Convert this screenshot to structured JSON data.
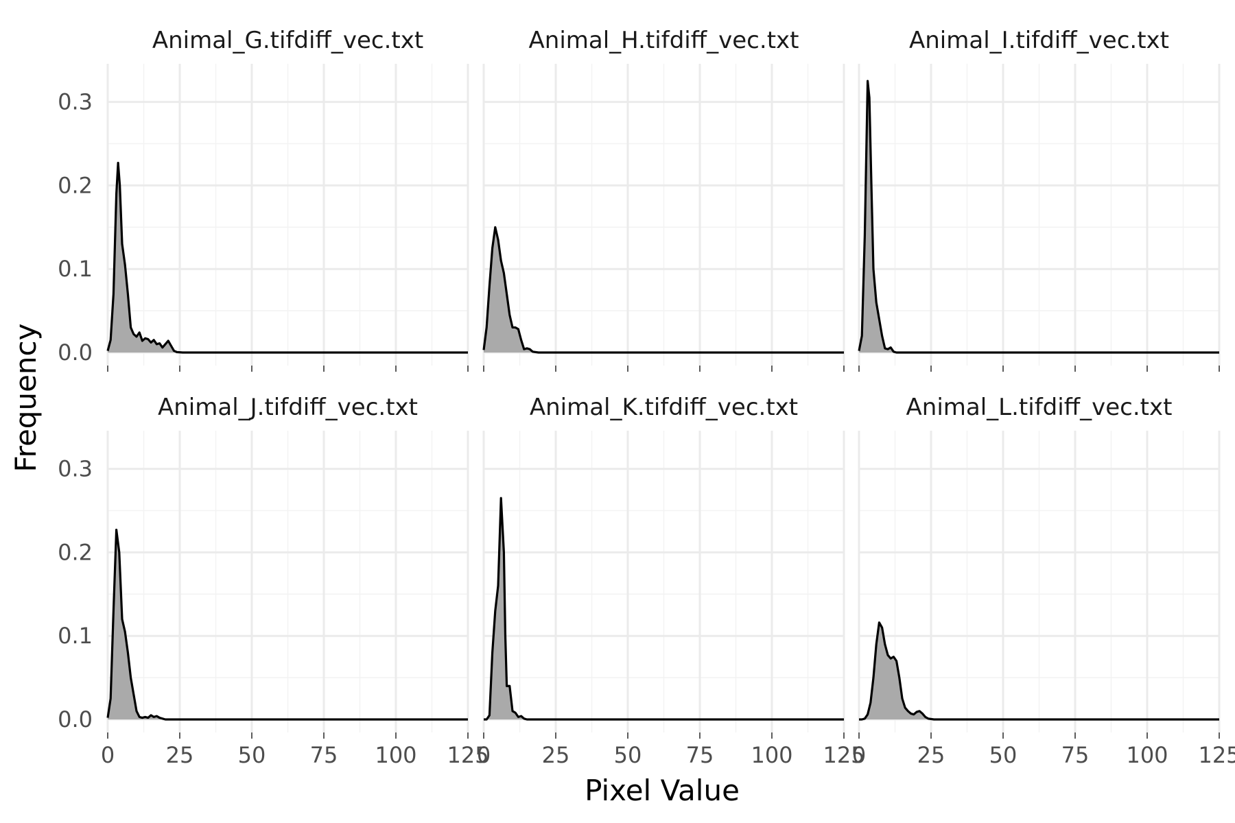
{
  "chart_data": {
    "type": "area",
    "subtype": "faceted density plot",
    "xlabel": "Pixel Value",
    "ylabel": "Frequency",
    "xlim": [
      0,
      125
    ],
    "ylim": [
      0,
      0.33
    ],
    "x_ticks": [
      0,
      25,
      50,
      75,
      100,
      125
    ],
    "x_tick_labels": [
      "0",
      "25",
      "50",
      "75",
      "100",
      "125"
    ],
    "y_ticks": [
      0.0,
      0.1,
      0.2,
      0.3
    ],
    "y_tick_labels": [
      "0.0",
      "0.1",
      "0.2",
      "0.3"
    ],
    "grid": true,
    "fill_color": "#aaaaaa",
    "line_color": "#000000",
    "facets": [
      {
        "title": "Animal_G.tifdiff_vec.txt",
        "points": [
          [
            0,
            0.002
          ],
          [
            1,
            0.015
          ],
          [
            2,
            0.07
          ],
          [
            3,
            0.19
          ],
          [
            3.6,
            0.227
          ],
          [
            4.2,
            0.2
          ],
          [
            5,
            0.13
          ],
          [
            6,
            0.105
          ],
          [
            7,
            0.07
          ],
          [
            8,
            0.03
          ],
          [
            9,
            0.022
          ],
          [
            10,
            0.019
          ],
          [
            11,
            0.024
          ],
          [
            12,
            0.014
          ],
          [
            13,
            0.017
          ],
          [
            14,
            0.016
          ],
          [
            15,
            0.012
          ],
          [
            16,
            0.015
          ],
          [
            17,
            0.01
          ],
          [
            18,
            0.011
          ],
          [
            19,
            0.006
          ],
          [
            20,
            0.01
          ],
          [
            21,
            0.014
          ],
          [
            22,
            0.008
          ],
          [
            23,
            0.002
          ],
          [
            24,
            0.0005
          ],
          [
            26,
            0
          ],
          [
            125,
            0
          ]
        ]
      },
      {
        "title": "Animal_H.tifdiff_vec.txt",
        "points": [
          [
            0,
            0.003
          ],
          [
            1,
            0.03
          ],
          [
            2,
            0.08
          ],
          [
            3,
            0.125
          ],
          [
            4,
            0.15
          ],
          [
            5,
            0.135
          ],
          [
            6,
            0.11
          ],
          [
            7,
            0.095
          ],
          [
            8,
            0.07
          ],
          [
            9,
            0.045
          ],
          [
            10,
            0.03
          ],
          [
            11,
            0.03
          ],
          [
            12,
            0.028
          ],
          [
            13,
            0.015
          ],
          [
            14,
            0.004
          ],
          [
            15,
            0.005
          ],
          [
            16,
            0.004
          ],
          [
            17,
            0.001
          ],
          [
            19,
            0
          ],
          [
            125,
            0
          ]
        ]
      },
      {
        "title": "Animal_I.tifdiff_vec.txt",
        "points": [
          [
            0,
            0.002
          ],
          [
            1,
            0.02
          ],
          [
            2,
            0.14
          ],
          [
            3,
            0.325
          ],
          [
            3.6,
            0.305
          ],
          [
            4.3,
            0.2
          ],
          [
            5,
            0.1
          ],
          [
            6,
            0.06
          ],
          [
            7,
            0.04
          ],
          [
            8,
            0.02
          ],
          [
            9,
            0.005
          ],
          [
            10,
            0.004
          ],
          [
            11,
            0.006
          ],
          [
            12,
            0.001
          ],
          [
            13,
            0
          ],
          [
            125,
            0
          ]
        ]
      },
      {
        "title": "Animal_J.tifdiff_vec.txt",
        "points": [
          [
            0,
            0.002
          ],
          [
            1,
            0.025
          ],
          [
            2,
            0.13
          ],
          [
            3,
            0.227
          ],
          [
            4,
            0.2
          ],
          [
            5,
            0.12
          ],
          [
            6,
            0.105
          ],
          [
            7,
            0.08
          ],
          [
            8,
            0.05
          ],
          [
            9,
            0.03
          ],
          [
            10,
            0.01
          ],
          [
            11,
            0.003
          ],
          [
            12,
            0.002
          ],
          [
            13,
            0.003
          ],
          [
            14,
            0.002
          ],
          [
            15,
            0.005
          ],
          [
            16,
            0.003
          ],
          [
            17,
            0.004
          ],
          [
            18,
            0.002
          ],
          [
            20,
            0
          ],
          [
            125,
            0
          ]
        ]
      },
      {
        "title": "Animal_K.tifdiff_vec.txt",
        "points": [
          [
            0,
            0
          ],
          [
            1,
            0
          ],
          [
            2,
            0.005
          ],
          [
            3,
            0.08
          ],
          [
            4,
            0.13
          ],
          [
            5,
            0.16
          ],
          [
            6,
            0.265
          ],
          [
            7,
            0.2
          ],
          [
            7.5,
            0.1
          ],
          [
            8,
            0.04
          ],
          [
            9,
            0.04
          ],
          [
            10,
            0.01
          ],
          [
            11,
            0.008
          ],
          [
            12,
            0.003
          ],
          [
            13,
            0.004
          ],
          [
            14,
            0.001
          ],
          [
            15,
            0
          ],
          [
            125,
            0
          ]
        ]
      },
      {
        "title": "Animal_L.tifdiff_vec.txt",
        "points": [
          [
            0,
            0
          ],
          [
            1,
            0
          ],
          [
            2,
            0.001
          ],
          [
            3,
            0.006
          ],
          [
            4,
            0.02
          ],
          [
            5,
            0.05
          ],
          [
            6,
            0.09
          ],
          [
            7,
            0.116
          ],
          [
            8,
            0.11
          ],
          [
            9,
            0.09
          ],
          [
            10,
            0.077
          ],
          [
            11,
            0.073
          ],
          [
            12,
            0.075
          ],
          [
            13,
            0.07
          ],
          [
            14,
            0.05
          ],
          [
            15,
            0.025
          ],
          [
            16,
            0.014
          ],
          [
            17,
            0.01
          ],
          [
            18,
            0.007
          ],
          [
            19,
            0.006
          ],
          [
            20,
            0.009
          ],
          [
            21,
            0.01
          ],
          [
            22,
            0.007
          ],
          [
            23,
            0.003
          ],
          [
            24,
            0.001
          ],
          [
            26,
            0
          ],
          [
            125,
            0
          ]
        ]
      }
    ]
  }
}
